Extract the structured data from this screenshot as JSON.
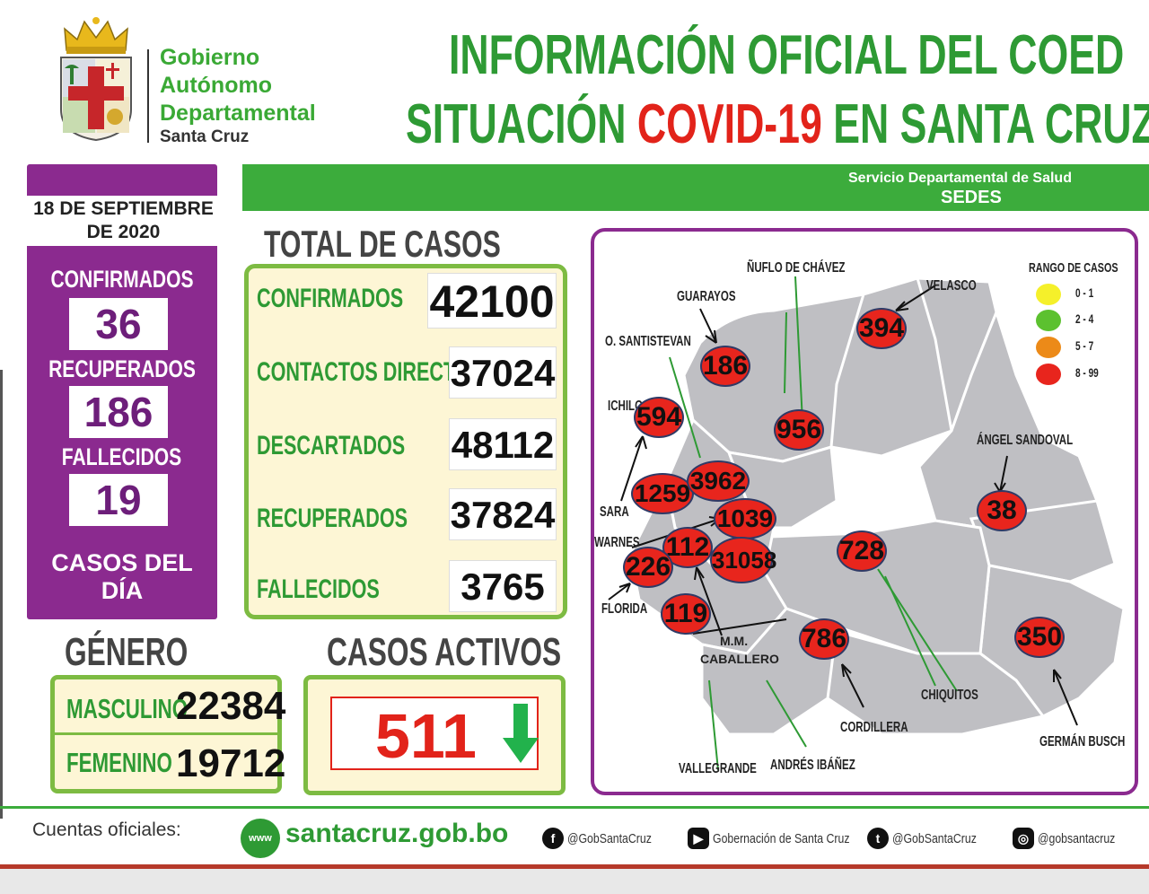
{
  "header": {
    "gob_line_1": "Gobierno",
    "gob_line_2": "Autónomo",
    "gob_line_3": "Departamental",
    "gob_line_4": "Santa Cruz",
    "title_line_1": "INFORMACIÓN OFICIAL DEL COED",
    "title_line_2_a": "SITUACIÓN ",
    "title_line_2_b": "COVID-19",
    "title_line_2_c": " EN SANTA CRUZ"
  },
  "banner": {
    "line_1": "Servicio Departamental de Salud",
    "line_2": "SEDES"
  },
  "daily": {
    "date_line_1": "18 DE SEPTIEMBRE",
    "date_line_2": "DE 2020",
    "confirmados_label": "CONFIRMADOS",
    "confirmados_value": "36",
    "recuperados_label": "RECUPERADOS",
    "recuperados_value": "186",
    "fallecidos_label": "FALLECIDOS",
    "fallecidos_value": "19",
    "footer_line_1": "CASOS DEL",
    "footer_line_2": "DÍA"
  },
  "totals": {
    "title": "TOTAL DE CASOS",
    "rows": [
      {
        "label": "CONFIRMADOS",
        "value": "42100"
      },
      {
        "label": "CONTACTOS DIRECTOS",
        "value": "37024"
      },
      {
        "label": "DESCARTADOS",
        "value": "48112"
      },
      {
        "label": "RECUPERADOS",
        "value": "37824"
      },
      {
        "label": "FALLECIDOS",
        "value": "3765"
      }
    ]
  },
  "gender": {
    "title": "GÉNERO",
    "masculino_label": "MASCULINO",
    "masculino_value": "22384",
    "femenino_label": "FEMENINO",
    "femenino_value": "19712"
  },
  "active": {
    "title": "CASOS ACTIVOS",
    "value": "511",
    "trend": "down"
  },
  "map": {
    "provinces": {
      "nuflo": "ÑUFLO DE CHÁVEZ",
      "guarayos": "GUARAYOS",
      "velasco": "VELASCO",
      "santistevan": "O. SANTISTEVAN",
      "ichilo": "ICHILO",
      "sara": "SARA",
      "warnes": "WARNES",
      "florida": "FLORIDA",
      "caballero_1": "M.M.",
      "caballero_2": "CABALLERO",
      "vallegrande": "VALLEGRANDE",
      "ibanez": "ANDRÉS IBÁÑEZ",
      "cordillera": "CORDILLERA",
      "chiquitos": "CHIQUITOS",
      "sandoval": "ÁNGEL SANDOVAL",
      "busch": "GERMÁN BUSCH"
    },
    "values": {
      "velasco": "394",
      "guarayos": "186",
      "nuflo": "956",
      "ichilo": "594",
      "sara": "1259",
      "santistevan": "3962",
      "warnes": "1039",
      "caballero": "112",
      "ibanez": "31058",
      "florida": "226",
      "vallegrande": "119",
      "chiquitos": "728",
      "cordillera": "786",
      "sandoval": "38",
      "busch": "350"
    },
    "legend": {
      "title": "RANGO DE CASOS",
      "items": [
        {
          "label": "0 - 1",
          "color": "#f5f02a"
        },
        {
          "label": "2 - 4",
          "color": "#5cc12f"
        },
        {
          "label": "5 - 7",
          "color": "#ec8a18"
        },
        {
          "label": "8 - 99",
          "color": "#e8251d"
        }
      ]
    }
  },
  "footer": {
    "cuentas": "Cuentas oficiales:",
    "website": "santacruz.gob.bo",
    "facebook": "@GobSantaCruz",
    "youtube": "Gobernación de Santa Cruz",
    "twitter": "@GobSantaCruz",
    "instagram": "@gobsantacruz",
    "www_icon_text": "www"
  }
}
